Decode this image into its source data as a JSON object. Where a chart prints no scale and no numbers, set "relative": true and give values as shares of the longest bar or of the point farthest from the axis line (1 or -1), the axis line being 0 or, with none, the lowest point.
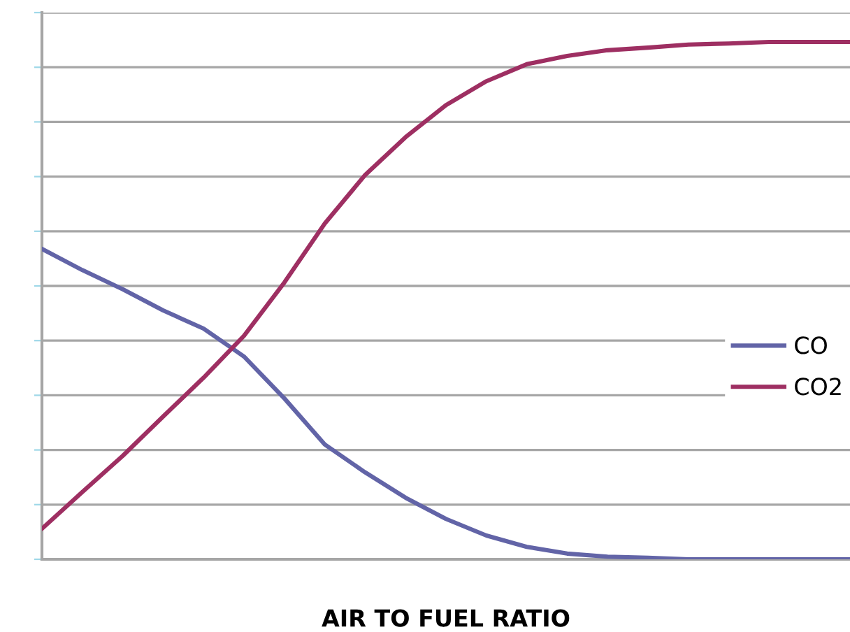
{
  "chart_data": {
    "type": "line",
    "xlabel": "AIR TO FUEL RATIO",
    "relative": true,
    "grid": "y",
    "legend": "right",
    "marker": "none",
    "line_style": "solid",
    "categories": [
      null,
      null,
      null,
      null,
      null,
      null,
      null,
      null,
      null,
      null,
      null,
      null,
      null,
      null,
      null,
      null,
      null,
      null,
      null,
      null,
      null
    ],
    "series": [
      {
        "name": "CO",
        "color": "#6264a7",
        "values": [
          0.6,
          0.559,
          0.522,
          0.481,
          0.446,
          0.392,
          0.311,
          0.222,
          0.168,
          0.119,
          0.078,
          0.046,
          0.024,
          0.011,
          0.005,
          0.003,
          0,
          0,
          0,
          0,
          0
        ]
      },
      {
        "name": "CO2",
        "color": "#9e2f62",
        "values": [
          0.059,
          0.13,
          0.2,
          0.276,
          0.351,
          0.432,
          0.535,
          0.649,
          0.743,
          0.816,
          0.878,
          0.924,
          0.957,
          0.973,
          0.984,
          0.989,
          0.995,
          0.997,
          1,
          1,
          1
        ]
      }
    ]
  }
}
